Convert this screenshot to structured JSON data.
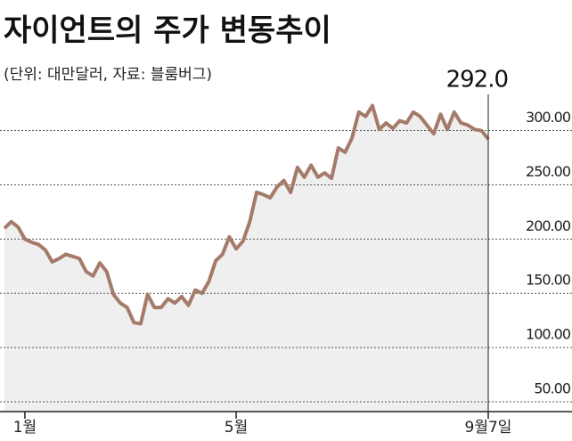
{
  "chart_data": {
    "type": "line",
    "title": "자이언트의 주가 변동추이",
    "subtitle": "(단위: 대만달러, 자료: 블룸버그)",
    "categories": [
      null,
      null,
      null,
      "1월",
      null,
      null,
      null,
      null,
      null,
      null,
      null,
      null,
      null,
      null,
      null,
      null,
      null,
      null,
      null,
      null,
      null,
      null,
      null,
      null,
      null,
      null,
      null,
      null,
      null,
      null,
      null,
      null,
      null,
      null,
      "5월",
      null,
      null,
      null,
      null,
      null,
      null,
      null,
      null,
      null,
      null,
      null,
      null,
      null,
      null,
      null,
      null,
      null,
      null,
      null,
      null,
      null,
      null,
      null,
      null,
      null,
      null,
      null,
      null,
      null,
      null,
      null,
      null,
      null,
      null,
      null,
      null,
      "9월7일"
    ],
    "series": [
      {
        "color": "#a57a6a",
        "values": [
          210,
          216,
          211,
          200,
          197,
          195,
          190,
          179,
          182,
          186,
          184,
          182,
          170,
          166,
          178,
          170,
          149,
          141,
          137,
          123,
          122,
          149,
          137,
          137,
          145,
          141,
          147,
          139,
          153,
          150,
          161,
          180,
          186,
          202,
          191,
          198,
          216,
          243,
          241,
          238,
          248,
          254,
          243,
          266,
          257,
          268,
          257,
          261,
          256,
          284,
          280,
          293,
          317,
          313,
          323,
          301,
          307,
          302,
          309,
          307,
          317,
          313,
          305,
          297,
          315,
          301,
          317,
          307,
          305,
          301,
          300,
          292
        ],
        "value_labels": [
          null,
          null,
          null,
          null,
          null,
          null,
          null,
          null,
          null,
          null,
          null,
          null,
          null,
          null,
          null,
          null,
          null,
          null,
          null,
          null,
          null,
          null,
          null,
          null,
          null,
          null,
          null,
          null,
          null,
          null,
          null,
          null,
          null,
          null,
          null,
          null,
          null,
          null,
          null,
          null,
          null,
          null,
          null,
          null,
          null,
          null,
          null,
          null,
          null,
          null,
          null,
          null,
          null,
          null,
          null,
          null,
          null,
          null,
          null,
          null,
          null,
          null,
          null,
          null,
          null,
          null,
          null,
          null,
          null,
          null,
          null,
          "292.0"
        ]
      }
    ],
    "ylim": [
      41,
      330
    ],
    "yticks": [
      {
        "value": 50,
        "label": "50.00"
      },
      {
        "value": 100,
        "label": "100.00"
      },
      {
        "value": 150,
        "label": "150.00"
      },
      {
        "value": 200,
        "label": "200.00"
      },
      {
        "value": 250,
        "label": "250.00"
      },
      {
        "value": 300,
        "label": "300.00"
      }
    ],
    "grid": true,
    "area_color": "#efefef"
  }
}
